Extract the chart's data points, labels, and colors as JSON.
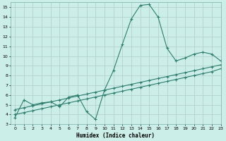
{
  "xlabel": "Humidex (Indice chaleur)",
  "bg_color": "#cceee8",
  "grid_color": "#b0ccc8",
  "line_color": "#2e7d6e",
  "xlim": [
    -0.5,
    23
  ],
  "ylim": [
    3,
    15.5
  ],
  "xticks": [
    0,
    1,
    2,
    3,
    4,
    5,
    6,
    7,
    8,
    9,
    10,
    11,
    12,
    13,
    14,
    15,
    16,
    17,
    18,
    19,
    20,
    21,
    22,
    23
  ],
  "yticks": [
    3,
    4,
    5,
    6,
    7,
    8,
    9,
    10,
    11,
    12,
    13,
    14,
    15
  ],
  "curve1_x": [
    0,
    1,
    2,
    3,
    4,
    5,
    6,
    7,
    8,
    9,
    10,
    11,
    12,
    13,
    14,
    15,
    16,
    17,
    18,
    19,
    20,
    21,
    22,
    23
  ],
  "curve1_y": [
    3.7,
    5.5,
    5.0,
    5.2,
    5.3,
    4.8,
    5.8,
    6.0,
    4.3,
    3.5,
    6.5,
    8.5,
    11.2,
    13.8,
    15.2,
    15.3,
    14.0,
    10.8,
    9.5,
    9.8,
    10.2,
    10.4,
    10.2,
    9.5
  ],
  "curve2_x": [
    0,
    1,
    2,
    3,
    4,
    5,
    6,
    7,
    8,
    9,
    10,
    11,
    12,
    13,
    14,
    15,
    16,
    17,
    18,
    19,
    20,
    21,
    22,
    23
  ],
  "curve2_y": [
    4.5,
    4.7,
    4.9,
    5.1,
    5.3,
    5.5,
    5.7,
    5.9,
    6.1,
    6.3,
    6.5,
    6.7,
    6.9,
    7.1,
    7.3,
    7.5,
    7.7,
    7.9,
    8.1,
    8.3,
    8.5,
    8.7,
    8.9,
    9.1
  ],
  "curve3_x": [
    0,
    1,
    2,
    3,
    4,
    5,
    6,
    7,
    8,
    9,
    10,
    11,
    12,
    13,
    14,
    15,
    16,
    17,
    18,
    19,
    20,
    21,
    22,
    23
  ],
  "curve3_y": [
    4.0,
    4.2,
    4.4,
    4.6,
    4.8,
    5.0,
    5.2,
    5.4,
    5.6,
    5.8,
    6.0,
    6.2,
    6.4,
    6.6,
    6.8,
    7.0,
    7.2,
    7.4,
    7.6,
    7.8,
    8.0,
    8.2,
    8.4,
    8.7
  ]
}
